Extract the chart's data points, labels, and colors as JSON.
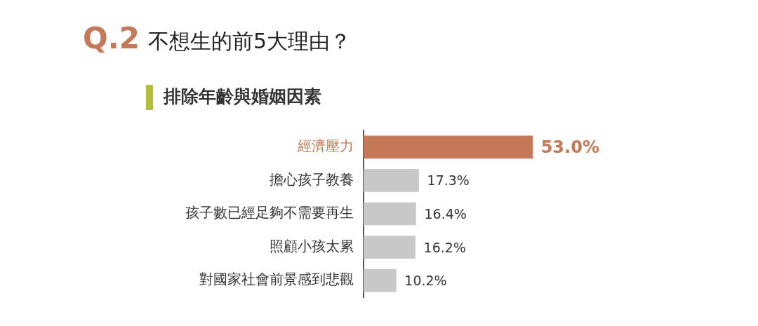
{
  "chart_data": {
    "type": "bar",
    "orientation": "horizontal",
    "title": "Q.2 不想生的前5大理由？",
    "subtitle": "排除年齡與婚姻因素",
    "categories": [
      "經濟壓力",
      "擔心孩子教養",
      "孩子數已經足夠不需要再生",
      "照顧小孩太累",
      "對國家社會前景感到悲觀"
    ],
    "values": [
      53.0,
      17.3,
      16.4,
      16.2,
      10.2
    ],
    "colors": [
      "#c47a58",
      "#c8c8c8",
      "#c8c8c8",
      "#c8c8c8",
      "#c8c8c8"
    ],
    "value_labels": [
      "53.0%",
      "17.3%",
      "16.4%",
      "16.2%",
      "10.2%"
    ],
    "xlim": [
      0,
      122
    ],
    "tick_labels": "y",
    "legend": false
  }
}
